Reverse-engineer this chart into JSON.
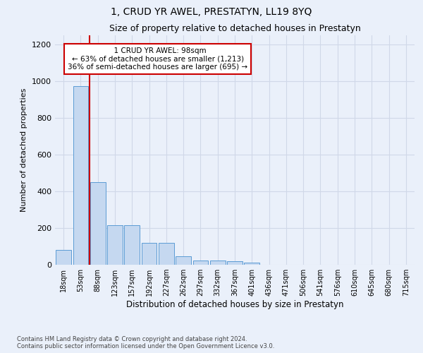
{
  "title": "1, CRUD YR AWEL, PRESTATYN, LL19 8YQ",
  "subtitle": "Size of property relative to detached houses in Prestatyn",
  "xlabel": "Distribution of detached houses by size in Prestatyn",
  "ylabel": "Number of detached properties",
  "footnote": "Contains HM Land Registry data © Crown copyright and database right 2024.\nContains public sector information licensed under the Open Government Licence v3.0.",
  "bar_labels": [
    "18sqm",
    "53sqm",
    "88sqm",
    "123sqm",
    "157sqm",
    "192sqm",
    "227sqm",
    "262sqm",
    "297sqm",
    "332sqm",
    "367sqm",
    "401sqm",
    "436sqm",
    "471sqm",
    "506sqm",
    "541sqm",
    "576sqm",
    "610sqm",
    "645sqm",
    "680sqm",
    "715sqm"
  ],
  "bar_values": [
    80,
    975,
    450,
    215,
    215,
    120,
    120,
    48,
    25,
    25,
    20,
    13,
    0,
    0,
    0,
    0,
    0,
    0,
    0,
    0,
    0
  ],
  "bar_color": "#c5d8f0",
  "bar_edge_color": "#5b9bd5",
  "red_line_x": 1.5,
  "red_line_color": "#cc0000",
  "annotation_text": "  1 CRUD YR AWEL: 98sqm\n← 63% of detached houses are smaller (1,213)\n36% of semi-detached houses are larger (695) →",
  "annotation_box_color": "white",
  "annotation_box_edge": "#cc0000",
  "ylim": [
    0,
    1250
  ],
  "yticks": [
    0,
    200,
    400,
    600,
    800,
    1000,
    1200
  ],
  "background_color": "#eaf0fa",
  "grid_color": "#d0d8e8",
  "title_fontsize": 10,
  "subtitle_fontsize": 9,
  "axis_label_fontsize": 8.5,
  "tick_fontsize": 7,
  "annotation_fontsize": 7.5,
  "footnote_fontsize": 6,
  "ylabel_fontsize": 8
}
